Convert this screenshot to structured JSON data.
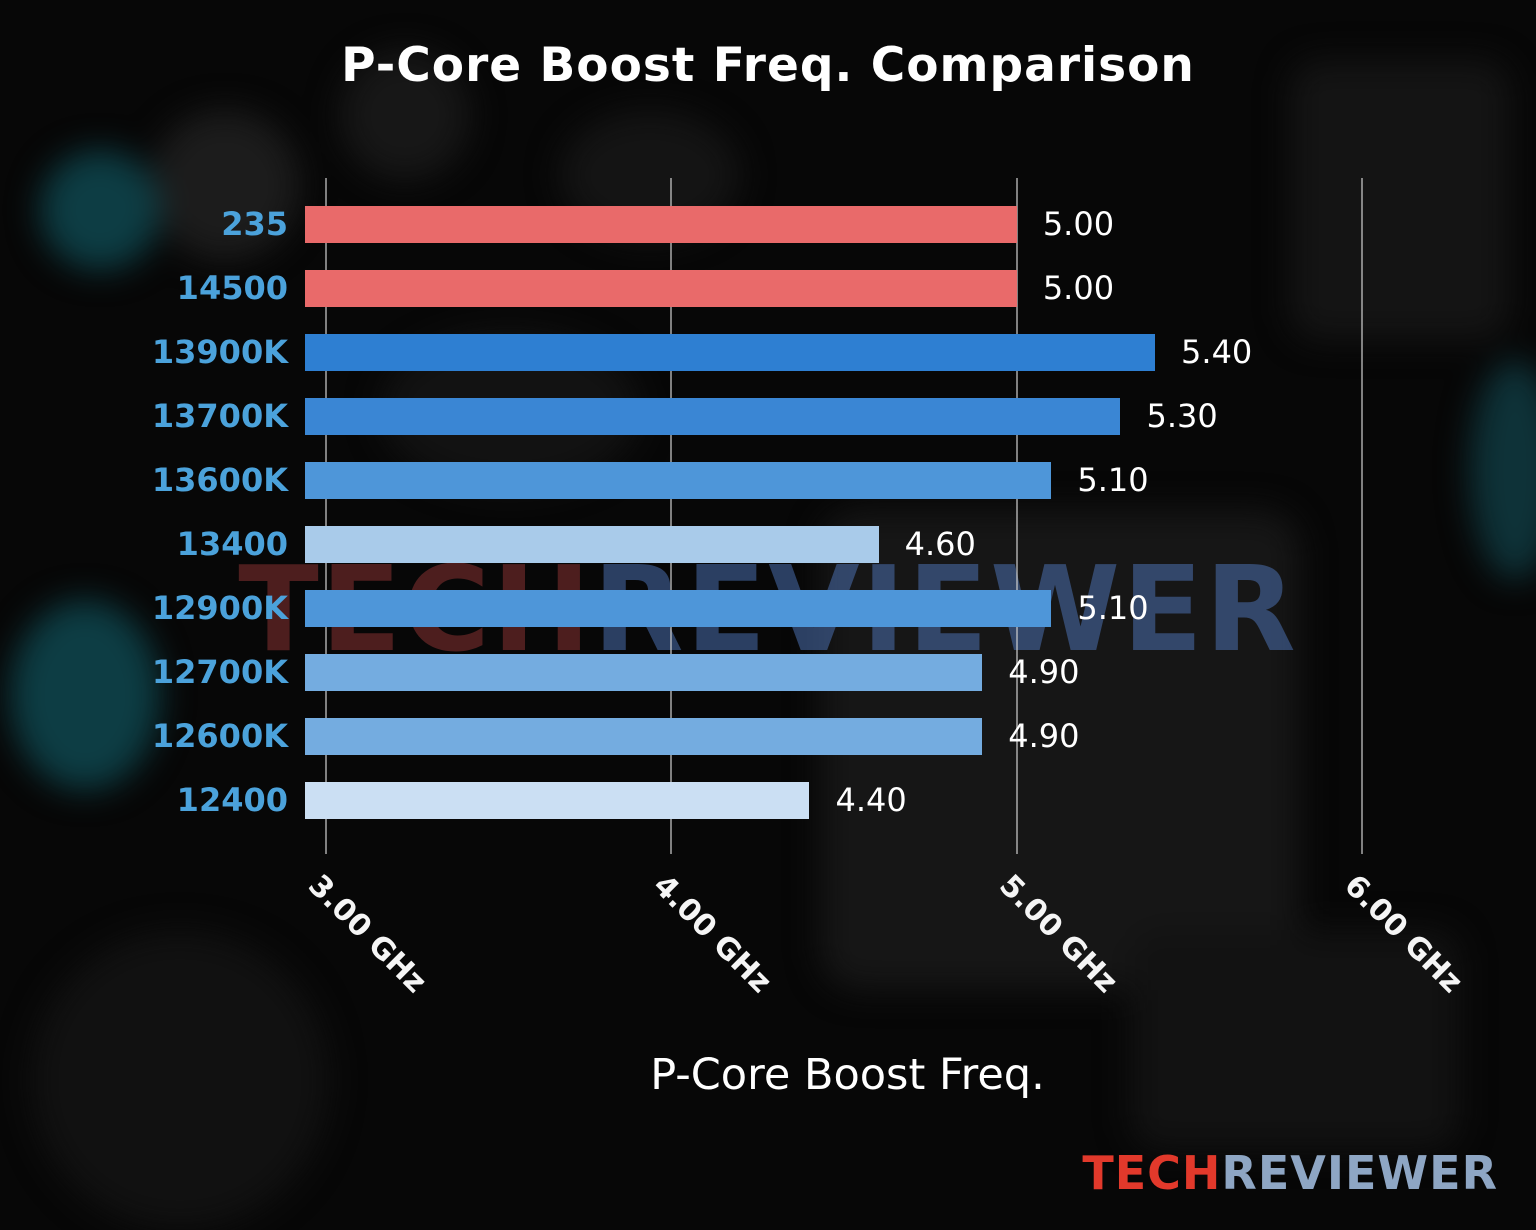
{
  "title": "P-Core Boost Freq. Comparison",
  "watermark": {
    "part1": "TECH",
    "part2": "REVIEWER"
  },
  "logo": {
    "part1": "TECH",
    "part2": "REVIEWER"
  },
  "colors": {
    "category_label": "#4BA2DB",
    "value_label": "#FFFFFF",
    "tick_label": "#F5F5F5",
    "gridline": "#D2D2D2",
    "red_bar": "#E96A6A",
    "logo_red": "#E2392B",
    "logo_blue": "#8EA6C4"
  },
  "chart_data": {
    "type": "bar",
    "orientation": "horizontal",
    "title": "P-Core Boost Freq. Comparison",
    "xlabel": "P-Core Boost Freq.",
    "ylabel": "",
    "xlim": [
      2.94,
      6.08
    ],
    "xticks": [
      3.0,
      4.0,
      5.0,
      6.0
    ],
    "xtick_labels": [
      "3.00 GHz",
      "4.00 GHz",
      "5.00 GHz",
      "6.00 GHz"
    ],
    "grid": true,
    "legend": false,
    "categories": [
      "235",
      "14500",
      "13900K",
      "13700K",
      "13600K",
      "13400",
      "12900K",
      "12700K",
      "12600K",
      "12400"
    ],
    "values": [
      5.0,
      5.0,
      5.4,
      5.3,
      5.1,
      4.6,
      5.1,
      4.9,
      4.9,
      4.4
    ],
    "value_labels": [
      "5.00",
      "5.00",
      "5.40",
      "5.30",
      "5.10",
      "4.60",
      "5.10",
      "4.90",
      "4.90",
      "4.40"
    ],
    "bar_colors": [
      "#E96A6A",
      "#E96A6A",
      "#2E7FD2",
      "#3A86D4",
      "#4E96D9",
      "#A9CBEA",
      "#4E96D9",
      "#74ACE0",
      "#74ACE0",
      "#CBDFF3"
    ]
  }
}
